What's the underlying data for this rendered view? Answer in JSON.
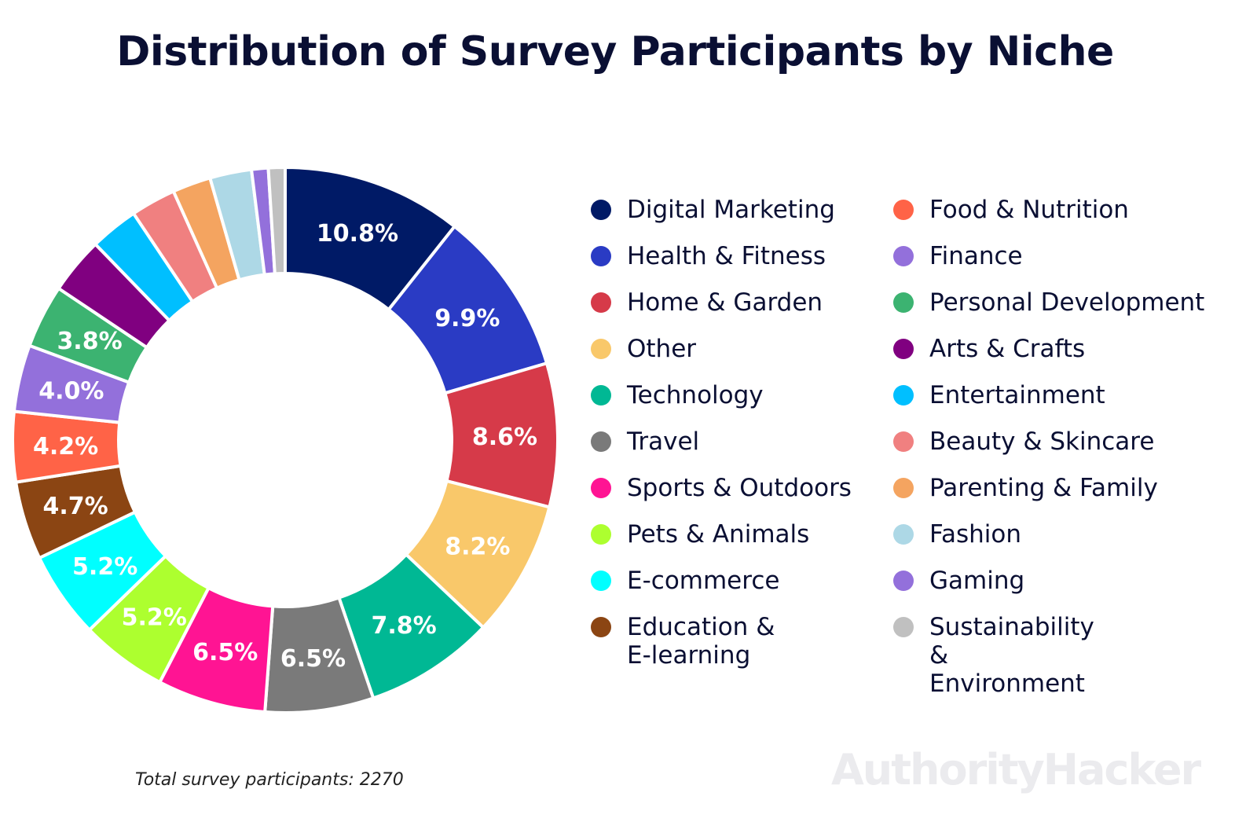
{
  "chart_data": {
    "type": "pie",
    "subtype": "donut",
    "title": "Distribution of Survey Participants by Niche",
    "unit": "%",
    "legend_position": "right",
    "start": "top, clockwise",
    "slices": [
      {
        "label": "Digital Marketing",
        "value": 10.8,
        "color": "#001a66",
        "shown_label": "10.8%"
      },
      {
        "label": "Health & Fitness",
        "value": 9.9,
        "color": "#2a3bc4",
        "shown_label": "9.9%"
      },
      {
        "label": "Home & Garden",
        "value": 8.6,
        "color": "#d63a49",
        "shown_label": "8.6%"
      },
      {
        "label": "Other",
        "value": 8.2,
        "color": "#f9c86a",
        "shown_label": "8.2%"
      },
      {
        "label": "Technology",
        "value": 7.8,
        "color": "#00b894",
        "shown_label": "7.8%"
      },
      {
        "label": "Travel",
        "value": 6.5,
        "color": "#7a7a7a",
        "shown_label": "6.5%"
      },
      {
        "label": "Sports & Outdoors",
        "value": 6.5,
        "color": "#ff1493",
        "shown_label": "6.5%"
      },
      {
        "label": "Pets & Animals",
        "value": 5.2,
        "color": "#adff2f",
        "shown_label": "5.2%"
      },
      {
        "label": "E-commerce",
        "value": 5.2,
        "color": "#00ffff",
        "shown_label": "5.2%"
      },
      {
        "label": "Education & E-learning",
        "value": 4.7,
        "color": "#8b4513",
        "shown_label": "4.7%"
      },
      {
        "label": "Food & Nutrition",
        "value": 4.2,
        "color": "#ff6347",
        "shown_label": "4.2%"
      },
      {
        "label": "Finance",
        "value": 4.0,
        "color": "#9370db",
        "shown_label": "4.0%"
      },
      {
        "label": "Personal Development",
        "value": 3.8,
        "color": "#3cb371",
        "shown_label": "3.8%"
      },
      {
        "label": "Arts & Crafts",
        "value": 3.4,
        "color": "#800080",
        "shown_label": ""
      },
      {
        "label": "Entertainment",
        "value": 2.9,
        "color": "#00bfff",
        "shown_label": ""
      },
      {
        "label": "Beauty & Skincare",
        "value": 2.7,
        "color": "#f08080",
        "shown_label": ""
      },
      {
        "label": "Parenting & Family",
        "value": 2.3,
        "color": "#f4a460",
        "shown_label": ""
      },
      {
        "label": "Fashion",
        "value": 2.5,
        "color": "#add8e6",
        "shown_label": ""
      },
      {
        "label": "Gaming",
        "value": 1.0,
        "color": "#9370db",
        "shown_label": ""
      },
      {
        "label": "Sustainability & Environment",
        "value": 1.0,
        "color": "#c0c0c0",
        "shown_label": ""
      }
    ]
  },
  "legend": {
    "col1": [
      {
        "label": "Digital Marketing",
        "color": "#001a66"
      },
      {
        "label": "Health & Fitness",
        "color": "#2a3bc4"
      },
      {
        "label": "Home & Garden",
        "color": "#d63a49"
      },
      {
        "label": "Other",
        "color": "#f9c86a"
      },
      {
        "label": "Technology",
        "color": "#00b894"
      },
      {
        "label": "Travel",
        "color": "#7a7a7a"
      },
      {
        "label": "Sports & Outdoors",
        "color": "#ff1493"
      },
      {
        "label": "Pets & Animals",
        "color": "#adff2f"
      },
      {
        "label": "E-commerce",
        "color": "#00ffff"
      },
      {
        "label": "Education & E-learning",
        "color": "#8b4513"
      }
    ],
    "col2": [
      {
        "label": "Food & Nutrition",
        "color": "#ff6347"
      },
      {
        "label": "Finance",
        "color": "#9370db"
      },
      {
        "label": "Personal Development",
        "color": "#3cb371"
      },
      {
        "label": "Arts & Crafts",
        "color": "#800080"
      },
      {
        "label": "Entertainment",
        "color": "#00bfff"
      },
      {
        "label": "Beauty & Skincare",
        "color": "#f08080"
      },
      {
        "label": "Parenting & Family",
        "color": "#f4a460"
      },
      {
        "label": "Fashion",
        "color": "#add8e6"
      },
      {
        "label": "Gaming",
        "color": "#9370db"
      },
      {
        "label": "Sustainability & Environment",
        "color": "#c0c0c0"
      }
    ]
  },
  "footnote": "Total survey participants: 2270",
  "watermark": "AuthorityHacker"
}
